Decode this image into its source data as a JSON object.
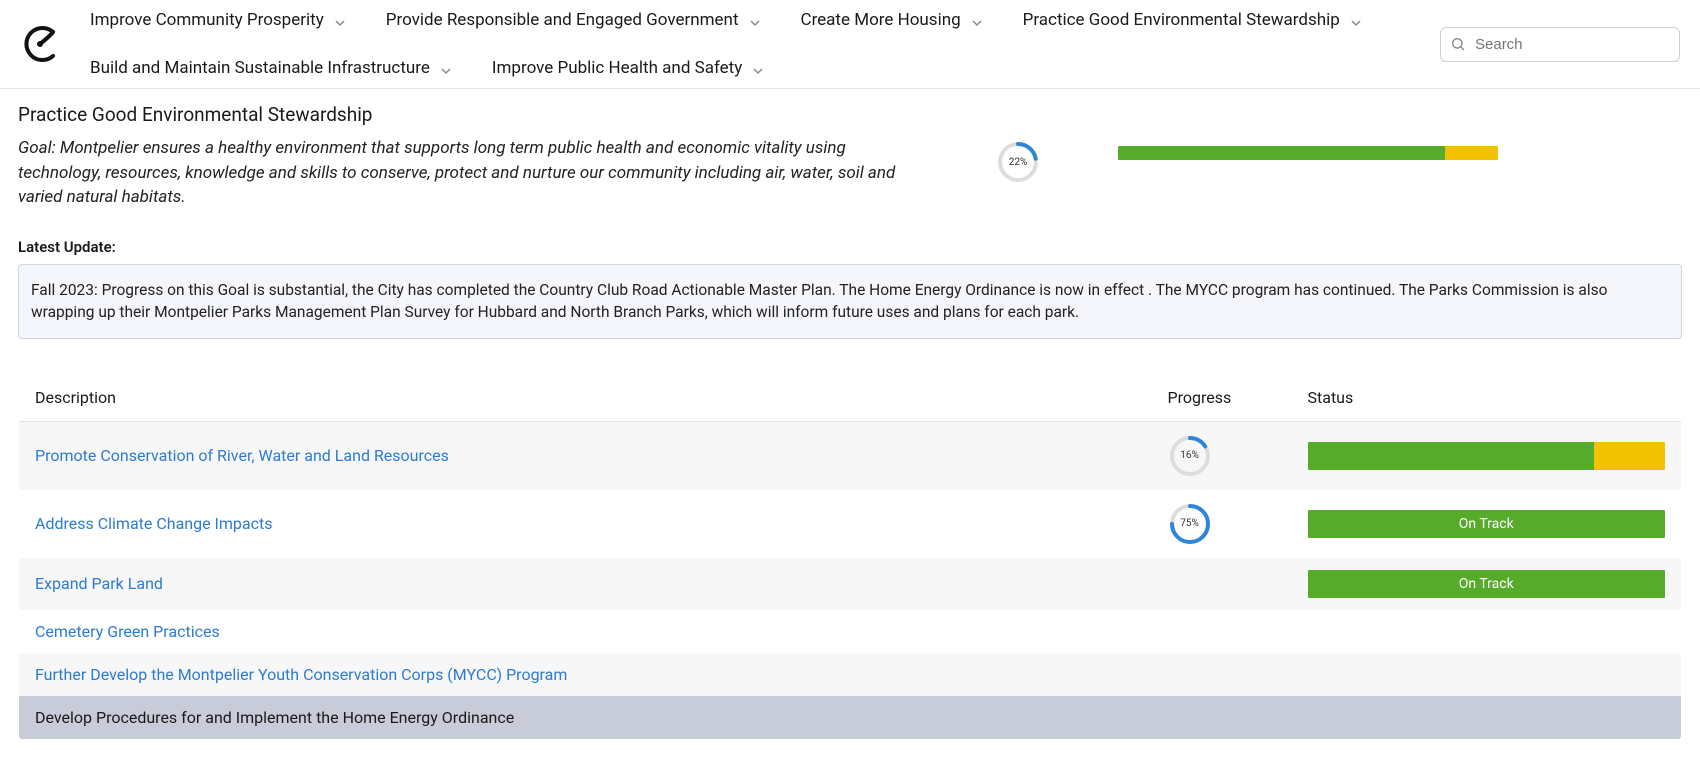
{
  "nav": {
    "items": [
      "Improve Community Prosperity",
      "Provide Responsible and Engaged Government",
      "Create More Housing",
      "Practice Good Environmental Stewardship",
      "Build and Maintain Sustainable Infrastructure",
      "Improve Public Health and Safety"
    ]
  },
  "search": {
    "placeholder": "Search"
  },
  "page": {
    "title": "Practice Good Environmental Stewardship",
    "goal": "Goal: Montpelier ensures a healthy environment that supports long term public health and economic vitality using technology, resources, knowledge and skills to conserve, protect and nurture our community including air, water, soil and varied natural habitats."
  },
  "header_metrics": {
    "progress_pct": 22,
    "progress_label": "22%",
    "ring_fg": "#2f86d6",
    "ring_bg": "#dddddd",
    "status_segments": [
      {
        "color": "#56ab2a",
        "pct": 86
      },
      {
        "color": "#f2c200",
        "pct": 14
      }
    ]
  },
  "latest_update": {
    "label": "Latest Update:",
    "text": "Fall 2023: Progress on this Goal is substantial, the City has completed the Country Club Road Actionable Master Plan. The Home Energy Ordinance is now in effect . The MYCC program has continued. The Parks Commission is also wrapping up their Montpelier Parks Management Plan Survey for Hubbard and North Branch Parks, which will inform future uses and plans for each park."
  },
  "table": {
    "columns": [
      "Description",
      "Progress",
      "Status"
    ],
    "rows": [
      {
        "desc": "Promote Conservation of River, Water and Land Resources",
        "link": true,
        "progress_pct": 16,
        "progress_label": "16%",
        "status": {
          "type": "segments",
          "segments": [
            {
              "color": "#56ab2a",
              "pct": 80
            },
            {
              "color": "#f2c200",
              "pct": 20
            }
          ]
        },
        "row_style": "odd"
      },
      {
        "desc": "Address Climate Change Impacts",
        "link": true,
        "progress_pct": 75,
        "progress_label": "75%",
        "status": {
          "type": "label",
          "label": "On Track",
          "color": "#56ab2a"
        },
        "row_style": "even"
      },
      {
        "desc": "Expand Park Land",
        "link": true,
        "progress_pct": null,
        "status": {
          "type": "label",
          "label": "On Track",
          "color": "#56ab2a"
        },
        "row_style": "odd"
      },
      {
        "desc": "Cemetery Green Practices",
        "link": true,
        "progress_pct": null,
        "status": null,
        "row_style": "even"
      },
      {
        "desc": "Further Develop the Montpelier Youth Conservation Corps (MYCC) Program",
        "link": true,
        "progress_pct": null,
        "status": null,
        "row_style": "odd"
      },
      {
        "desc": "Develop Procedures for and Implement the Home Energy Ordinance",
        "link": false,
        "progress_pct": null,
        "status": null,
        "row_style": "active"
      }
    ]
  },
  "colors": {
    "link": "#2d7bd1",
    "ring_fg": "#2f86d6",
    "ring_bg": "#dddddd"
  }
}
